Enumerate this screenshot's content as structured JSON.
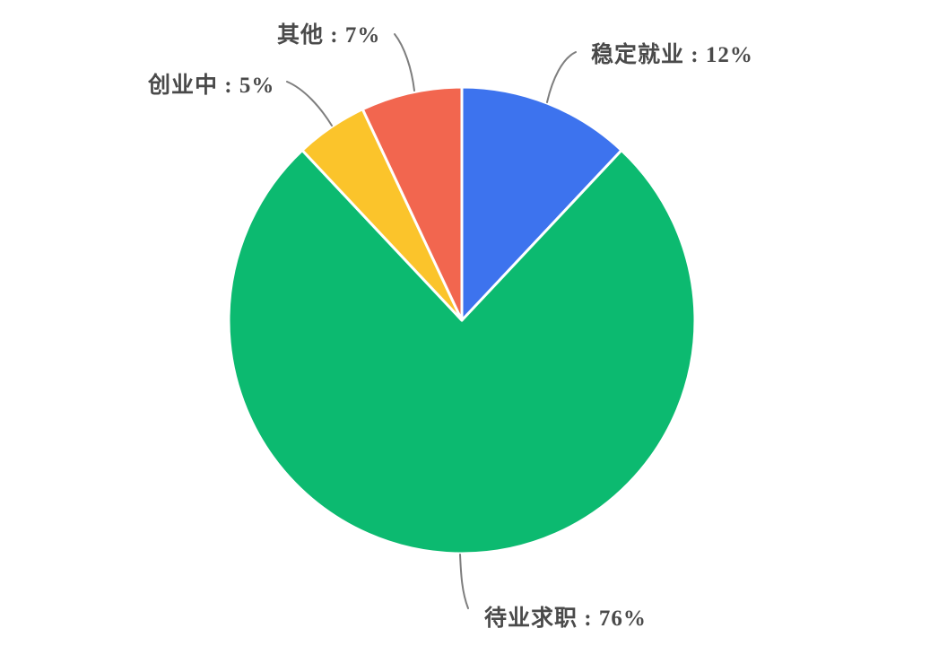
{
  "figure": {
    "background_color": "#FFFFFF"
  },
  "chart_data": {
    "type": "pie",
    "direction": "clockwise",
    "start_position": "top",
    "unit": "%",
    "slices": [
      {
        "id": "stable-employment",
        "label": "稳定就业",
        "value": 12,
        "callout_text": "稳定就业 : 12%",
        "color": "#3D73EE"
      },
      {
        "id": "unemployed-job-seeking",
        "label": "待业求职",
        "value": 76,
        "callout_text": "待业求职 : 76%",
        "color": "#0CBA70"
      },
      {
        "id": "starting-business",
        "label": "创业中",
        "value": 5,
        "callout_text": "创业中 : 5%",
        "color": "#FBC42B"
      },
      {
        "id": "other",
        "label": "其他",
        "value": 7,
        "callout_text": "其他 : 7%",
        "color": "#F2664F"
      }
    ],
    "label_text_color": "#4A4A4A",
    "leader_line_color": "#7E7E7E",
    "slice_separator_color": "#FFFFFF",
    "legend_position": "callouts-around-pie",
    "grid": false
  }
}
